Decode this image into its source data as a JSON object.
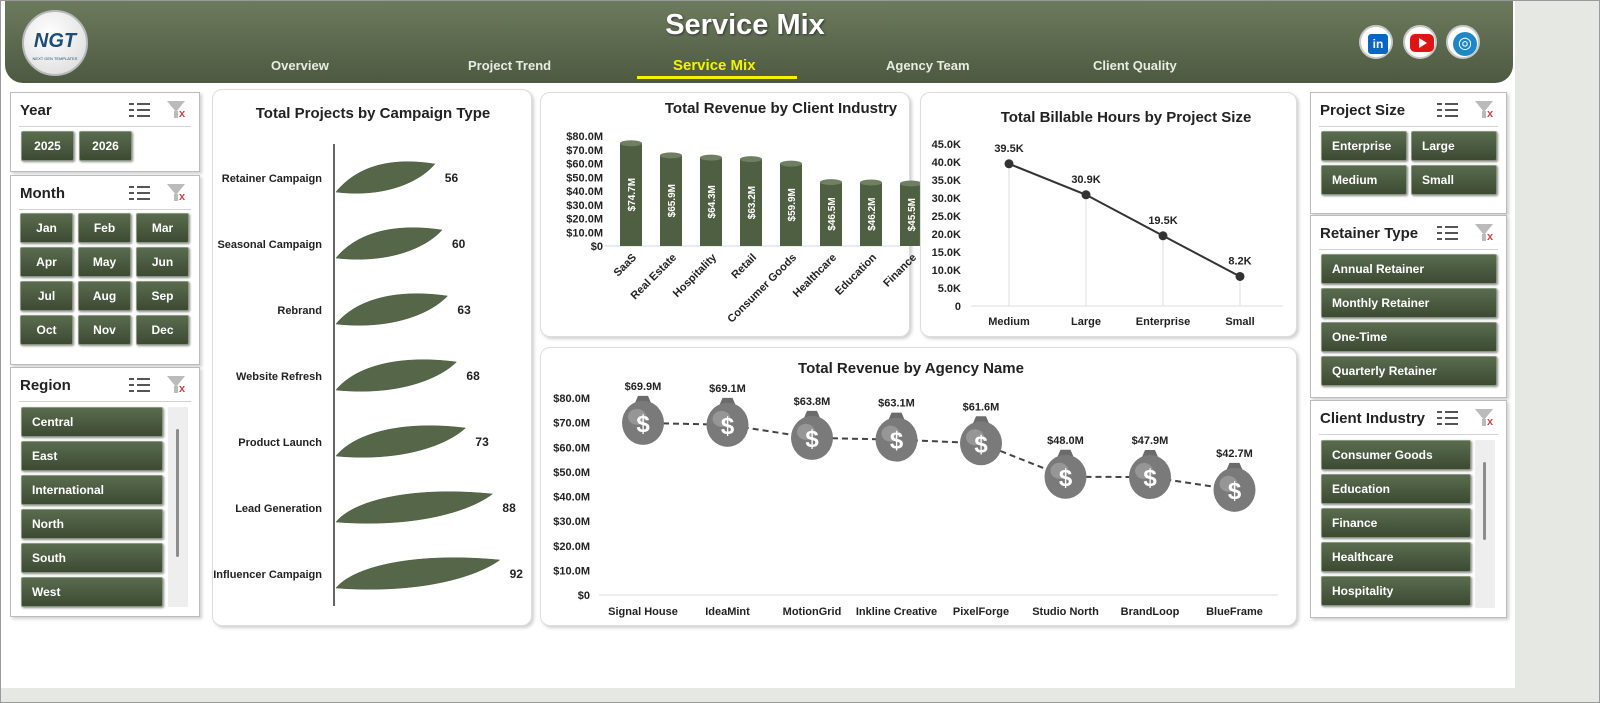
{
  "header": {
    "title": "Service Mix",
    "logo": {
      "text": "NGT",
      "subtext": "NEXT GEN TEMPLATES"
    },
    "tabs": [
      {
        "label": "Overview"
      },
      {
        "label": "Project Trend"
      },
      {
        "label": "Service Mix"
      },
      {
        "label": "Agency Team"
      },
      {
        "label": "Client Quality"
      }
    ],
    "active_tab": "Service Mix",
    "social": [
      {
        "icon": "linkedin-icon",
        "text": "in"
      },
      {
        "icon": "youtube-icon"
      },
      {
        "icon": "globe-icon"
      }
    ]
  },
  "slicers": {
    "year": {
      "title": "Year",
      "items": [
        "2025",
        "2026"
      ]
    },
    "month": {
      "title": "Month",
      "items": [
        "Jan",
        "Feb",
        "Mar",
        "Apr",
        "May",
        "Jun",
        "Jul",
        "Aug",
        "Sep",
        "Oct",
        "Nov",
        "Dec"
      ]
    },
    "region": {
      "title": "Region",
      "items": [
        "Central",
        "East",
        "International",
        "North",
        "South",
        "West"
      ]
    },
    "project_size": {
      "title": "Project Size",
      "items": [
        "Enterprise",
        "Large",
        "Medium",
        "Small"
      ]
    },
    "retainer_type": {
      "title": "Retainer Type",
      "items": [
        "Annual Retainer",
        "Monthly Retainer",
        "One-Time",
        "Quarterly Retainer"
      ]
    },
    "client_industry": {
      "title": "Client Industry",
      "items": [
        "Consumer Goods",
        "Education",
        "Finance",
        "Healthcare",
        "Hospitality"
      ]
    }
  },
  "colors": {
    "header_dark": "#4d5a41",
    "bar": "#4e5e40",
    "button": "#46553a",
    "active_tab": "#f4f300"
  },
  "chart_data": [
    {
      "type": "bar",
      "orientation": "horizontal",
      "title": "Total Projects by Campaign Type",
      "categories": [
        "Retainer Campaign",
        "Seasonal Campaign",
        "Rebrand",
        "Website Refresh",
        "Product Launch",
        "Lead Generation",
        "Influencer Campaign"
      ],
      "values": [
        56,
        60,
        63,
        68,
        73,
        88,
        92
      ],
      "data_labels": [
        "56",
        "60",
        "63",
        "68",
        "73",
        "88",
        "92"
      ]
    },
    {
      "type": "bar",
      "title": "Total Revenue  by Client Industry",
      "categories": [
        "SaaS",
        "Real Estate",
        "Hospitality",
        "Retail",
        "Consumer Goods",
        "Healthcare",
        "Education",
        "Finance"
      ],
      "values": [
        74.7,
        65.9,
        64.3,
        63.2,
        59.9,
        46.5,
        46.2,
        45.5
      ],
      "data_labels": [
        "$74.7M",
        "$65.9M",
        "$64.3M",
        "$63.2M",
        "$59.9M",
        "$46.5M",
        "$46.2M",
        "$45.5M"
      ],
      "ylim": [
        0,
        80
      ],
      "yticks": [
        "$0",
        "$10.0M",
        "$20.0M",
        "$30.0M",
        "$40.0M",
        "$50.0M",
        "$60.0M",
        "$70.0M",
        "$80.0M"
      ]
    },
    {
      "type": "line",
      "title": "Total Billable Hours by Project Size",
      "categories": [
        "Medium",
        "Large",
        "Enterprise",
        "Small"
      ],
      "values": [
        39.5,
        30.9,
        19.5,
        8.2
      ],
      "data_labels": [
        "39.5K",
        "30.9K",
        "19.5K",
        "8.2K"
      ],
      "ylim": [
        0,
        45
      ],
      "yticks": [
        "0",
        "5.0K",
        "10.0K",
        "15.0K",
        "20.0K",
        "25.0K",
        "30.0K",
        "35.0K",
        "40.0K",
        "45.0K"
      ]
    },
    {
      "type": "line",
      "title": "Total Revenue  by Agency Name",
      "categories": [
        "Signal House",
        "IdeaMint",
        "MotionGrid",
        "Inkline Creative",
        "PixelForge",
        "Studio North",
        "BrandLoop",
        "BlueFrame"
      ],
      "values": [
        69.9,
        69.1,
        63.8,
        63.1,
        61.6,
        48.0,
        47.9,
        42.7
      ],
      "data_labels": [
        "$69.9M",
        "$69.1M",
        "$63.8M",
        "$63.1M",
        "$61.6M",
        "$48.0M",
        "$47.9M",
        "$42.7M"
      ],
      "ylim": [
        0,
        80
      ],
      "yticks": [
        "$0",
        "$10.0M",
        "$20.0M",
        "$30.0M",
        "$40.0M",
        "$50.0M",
        "$60.0M",
        "$70.0M",
        "$80.0M"
      ],
      "marker": "money-bag-icon"
    }
  ]
}
